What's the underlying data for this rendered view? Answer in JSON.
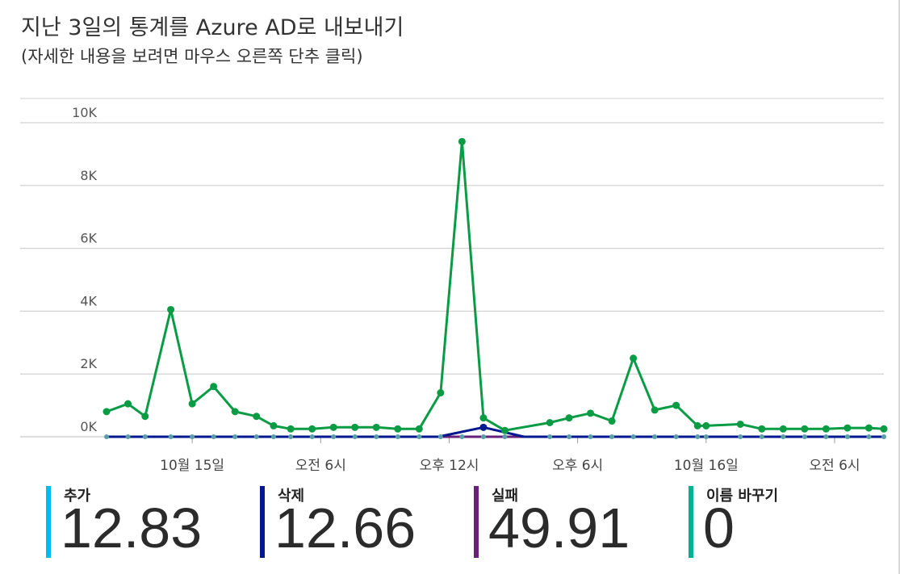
{
  "header": {
    "title": "지난 3일의 통계를 Azure AD로 내보내기",
    "subtitle": "(자세한 내용을 보려면 마우스 오른쪽 단추 클릭)"
  },
  "chart_data": {
    "type": "line",
    "y_ticks": [
      "0K",
      "2K",
      "4K",
      "6K",
      "8K",
      "10K"
    ],
    "ylim": [
      0,
      10000
    ],
    "grid": true,
    "x_ticks": [
      {
        "label": "10월 15일",
        "x": 4
      },
      {
        "label": "오전 6시",
        "x": 10
      },
      {
        "label": "오후 12시",
        "x": 16
      },
      {
        "label": "오후 6시",
        "x": 22
      },
      {
        "label": "10월 16일",
        "x": 28
      },
      {
        "label": "오전 6시",
        "x": 34
      }
    ],
    "xlim": [
      0,
      36.3
    ],
    "series": [
      {
        "name": "이름 바꾸기",
        "color": "#0a9b45",
        "x": [
          0,
          1,
          1.8,
          3,
          4,
          5,
          6,
          7,
          7.8,
          8.6,
          9.6,
          10.6,
          11.6,
          12.6,
          13.6,
          14.6,
          15.6,
          16.6,
          17.6,
          18.6,
          20.7,
          21.6,
          22.6,
          23.6,
          24.6,
          25.6,
          26.6,
          27.6,
          28,
          29.6,
          30.6,
          31.6,
          32.6,
          33.6,
          34.6,
          35.6,
          36.3
        ],
        "y": [
          800,
          1050,
          650,
          4050,
          1050,
          1600,
          800,
          650,
          350,
          250,
          250,
          300,
          300,
          300,
          250,
          250,
          1400,
          9400,
          600,
          200,
          450,
          600,
          750,
          500,
          2500,
          850,
          1000,
          350,
          350,
          400,
          250,
          250,
          250,
          250,
          280,
          280,
          250
        ]
      },
      {
        "name": "삭제",
        "color": "#00188f",
        "x": [
          0,
          15.5,
          17.6,
          19.5,
          36.3
        ],
        "y": [
          0,
          0,
          300,
          0,
          0
        ]
      },
      {
        "name": "실패",
        "color": "#68217a",
        "x": [
          0,
          36.3
        ],
        "y": [
          0,
          0
        ]
      },
      {
        "name": "추가",
        "color": "#00bcf2",
        "x": [
          0,
          36.3
        ],
        "y": [
          0,
          0
        ]
      }
    ]
  },
  "legend": [
    {
      "label": "추가",
      "value": "12.83",
      "color": "#00bcf2"
    },
    {
      "label": "삭제",
      "value": "12.66",
      "color": "#00188f"
    },
    {
      "label": "실패",
      "value": "49.91",
      "color": "#68217a"
    },
    {
      "label": "이름 바꾸기",
      "value": "0",
      "color": "#00b294"
    }
  ]
}
